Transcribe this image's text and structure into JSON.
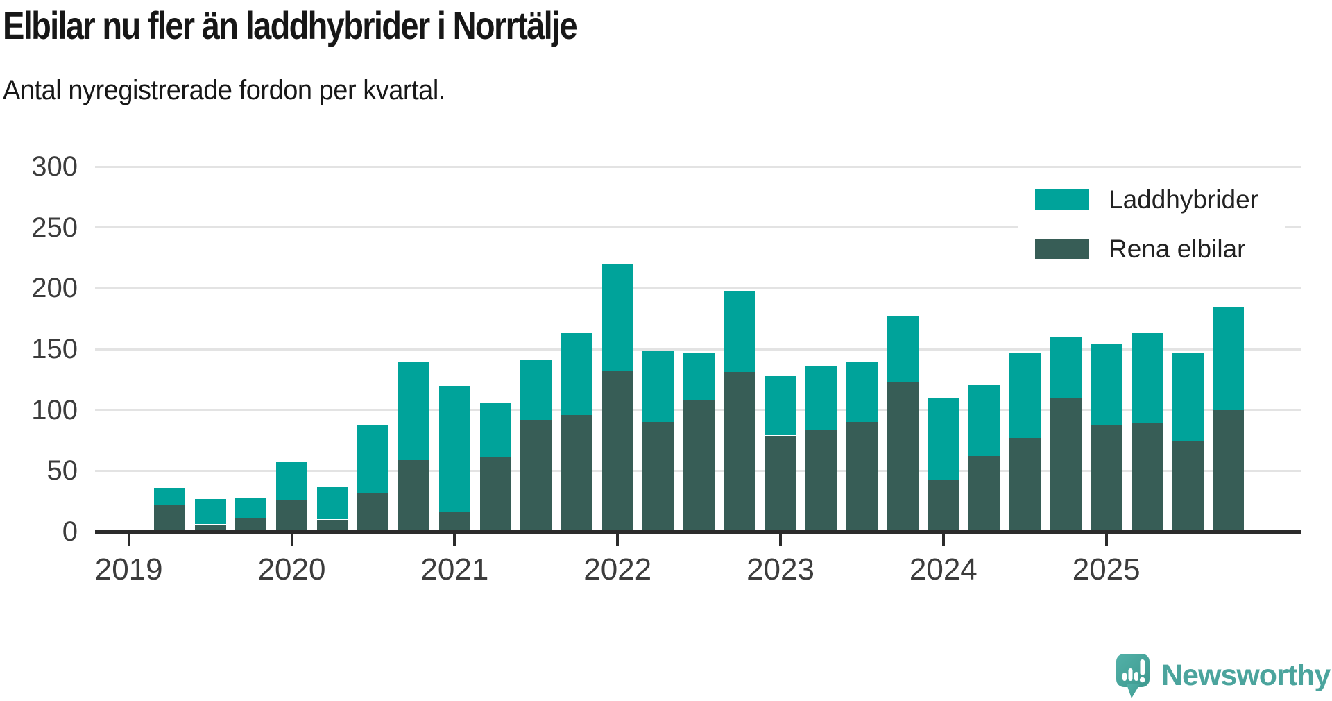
{
  "title": "Elbilar nu fler än laddhybrider i Norrtälje",
  "subtitle": "Antal nyregistrerade fordon per kvartal.",
  "legend": {
    "items": [
      {
        "label": "Laddhybrider",
        "color": "#00A39A"
      },
      {
        "label": "Rena elbilar",
        "color": "#375D56"
      }
    ]
  },
  "branding": {
    "wordmark": "Newsworthy",
    "logo_color": "#4CA9A1",
    "logo_color_dark": "#3E998F",
    "text_color": "#4BA49D"
  },
  "colors": {
    "laddhybrider": "#00A39A",
    "rena_elbilar": "#375D56",
    "gridline": "#E3E3E3",
    "axis": "#2B2B2B",
    "tick_label": "#3C3C3C",
    "text": "#171717"
  },
  "chart_data": {
    "type": "bar",
    "stacked": true,
    "title": "Elbilar nu fler än laddhybrider i Norrtälje",
    "subtitle": "Antal nyregistrerade fordon per kvartal.",
    "x": [
      "2019 K2",
      "2019 K3",
      "2019 K4",
      "2020 K1",
      "2020 K2",
      "2020 K3",
      "2020 K4",
      "2021 K1",
      "2021 K2",
      "2021 K3",
      "2021 K4",
      "2022 K1",
      "2022 K2",
      "2022 K3",
      "2022 K4",
      "2023 K1",
      "2023 K2",
      "2023 K3",
      "2023 K4",
      "2024 K1",
      "2024 K2",
      "2024 K3",
      "2024 K4",
      "2025 K1",
      "2025 K2",
      "2025 K3",
      "2025 K4"
    ],
    "series": [
      {
        "name": "Laddhybrider",
        "color": "#00A39A",
        "values": [
          14,
          21,
          17,
          31,
          27,
          56,
          81,
          104,
          45,
          49,
          67,
          88,
          59,
          39,
          67,
          49,
          52,
          49,
          54,
          67,
          59,
          70,
          50,
          66,
          74,
          73,
          84
        ]
      },
      {
        "name": "Rena elbilar",
        "color": "#375D56",
        "values": [
          22,
          6,
          11,
          26,
          10,
          32,
          59,
          16,
          61,
          92,
          96,
          132,
          90,
          108,
          131,
          79,
          84,
          90,
          123,
          43,
          62,
          77,
          110,
          88,
          89,
          74,
          100
        ]
      }
    ],
    "stack_order": [
      "Rena elbilar",
      "Laddhybrider"
    ],
    "totals": [
      36,
      27,
      28,
      57,
      37,
      88,
      140,
      120,
      106,
      141,
      163,
      220,
      149,
      147,
      198,
      128,
      136,
      139,
      177,
      110,
      121,
      147,
      160,
      154,
      163,
      147,
      184
    ],
    "x_tick_labels": [
      "2019",
      "2020",
      "2021",
      "2022",
      "2023",
      "2024",
      "2025"
    ],
    "y_ticks": [
      0,
      50,
      100,
      150,
      200,
      250,
      300
    ],
    "ylim": [
      0,
      300
    ],
    "grid": "horizontal",
    "legend_position": "top-right"
  }
}
